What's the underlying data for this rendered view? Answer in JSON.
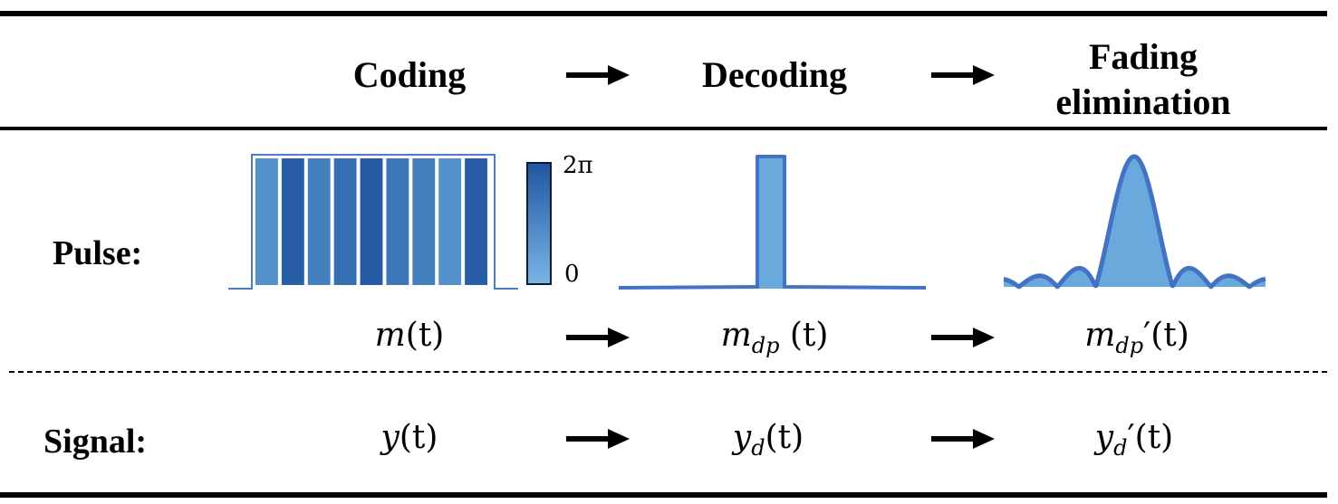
{
  "header": {
    "coding": "Coding",
    "decoding": "Decoding",
    "fading_line1": "Fading",
    "fading_line2": "elimination"
  },
  "rows": {
    "pulse_label": "Pulse:",
    "signal_label": "Signal:"
  },
  "colorbar": {
    "max_label": "2π",
    "min_label": "0"
  },
  "pulse_terms": {
    "coding": {
      "base": "m",
      "sub": "",
      "prime": "",
      "arg": "(t)"
    },
    "decoding": {
      "base": "m",
      "sub": "dp",
      "prime": "",
      "arg": " (t)"
    },
    "fading": {
      "base": "m",
      "sub": "dp",
      "prime": "′",
      "arg": "(t)"
    }
  },
  "signal_terms": {
    "coding": {
      "base": "y",
      "sub": "",
      "prime": "",
      "arg": "(t)"
    },
    "decoding": {
      "base": "y",
      "sub": "d",
      "prime": "",
      "arg": "(t)"
    },
    "fading": {
      "base": "y",
      "sub": "d",
      "prime": "′",
      "arg": "(t)"
    }
  },
  "coding_pulse": {
    "segment_phase_levels": [
      0.3,
      0.9,
      0.5,
      0.7,
      0.95,
      0.6,
      0.5,
      0.3,
      0.9
    ],
    "colors": {
      "light": "#6aa9dc",
      "dark": "#1f56a0",
      "outline": "#4a7fc7"
    }
  },
  "decoded_pulse": {
    "fill": "#6aa9dc",
    "stroke": "#4472c4"
  },
  "fading_pulse": {
    "fill": "#6aa9dc",
    "stroke": "#4472c4"
  }
}
